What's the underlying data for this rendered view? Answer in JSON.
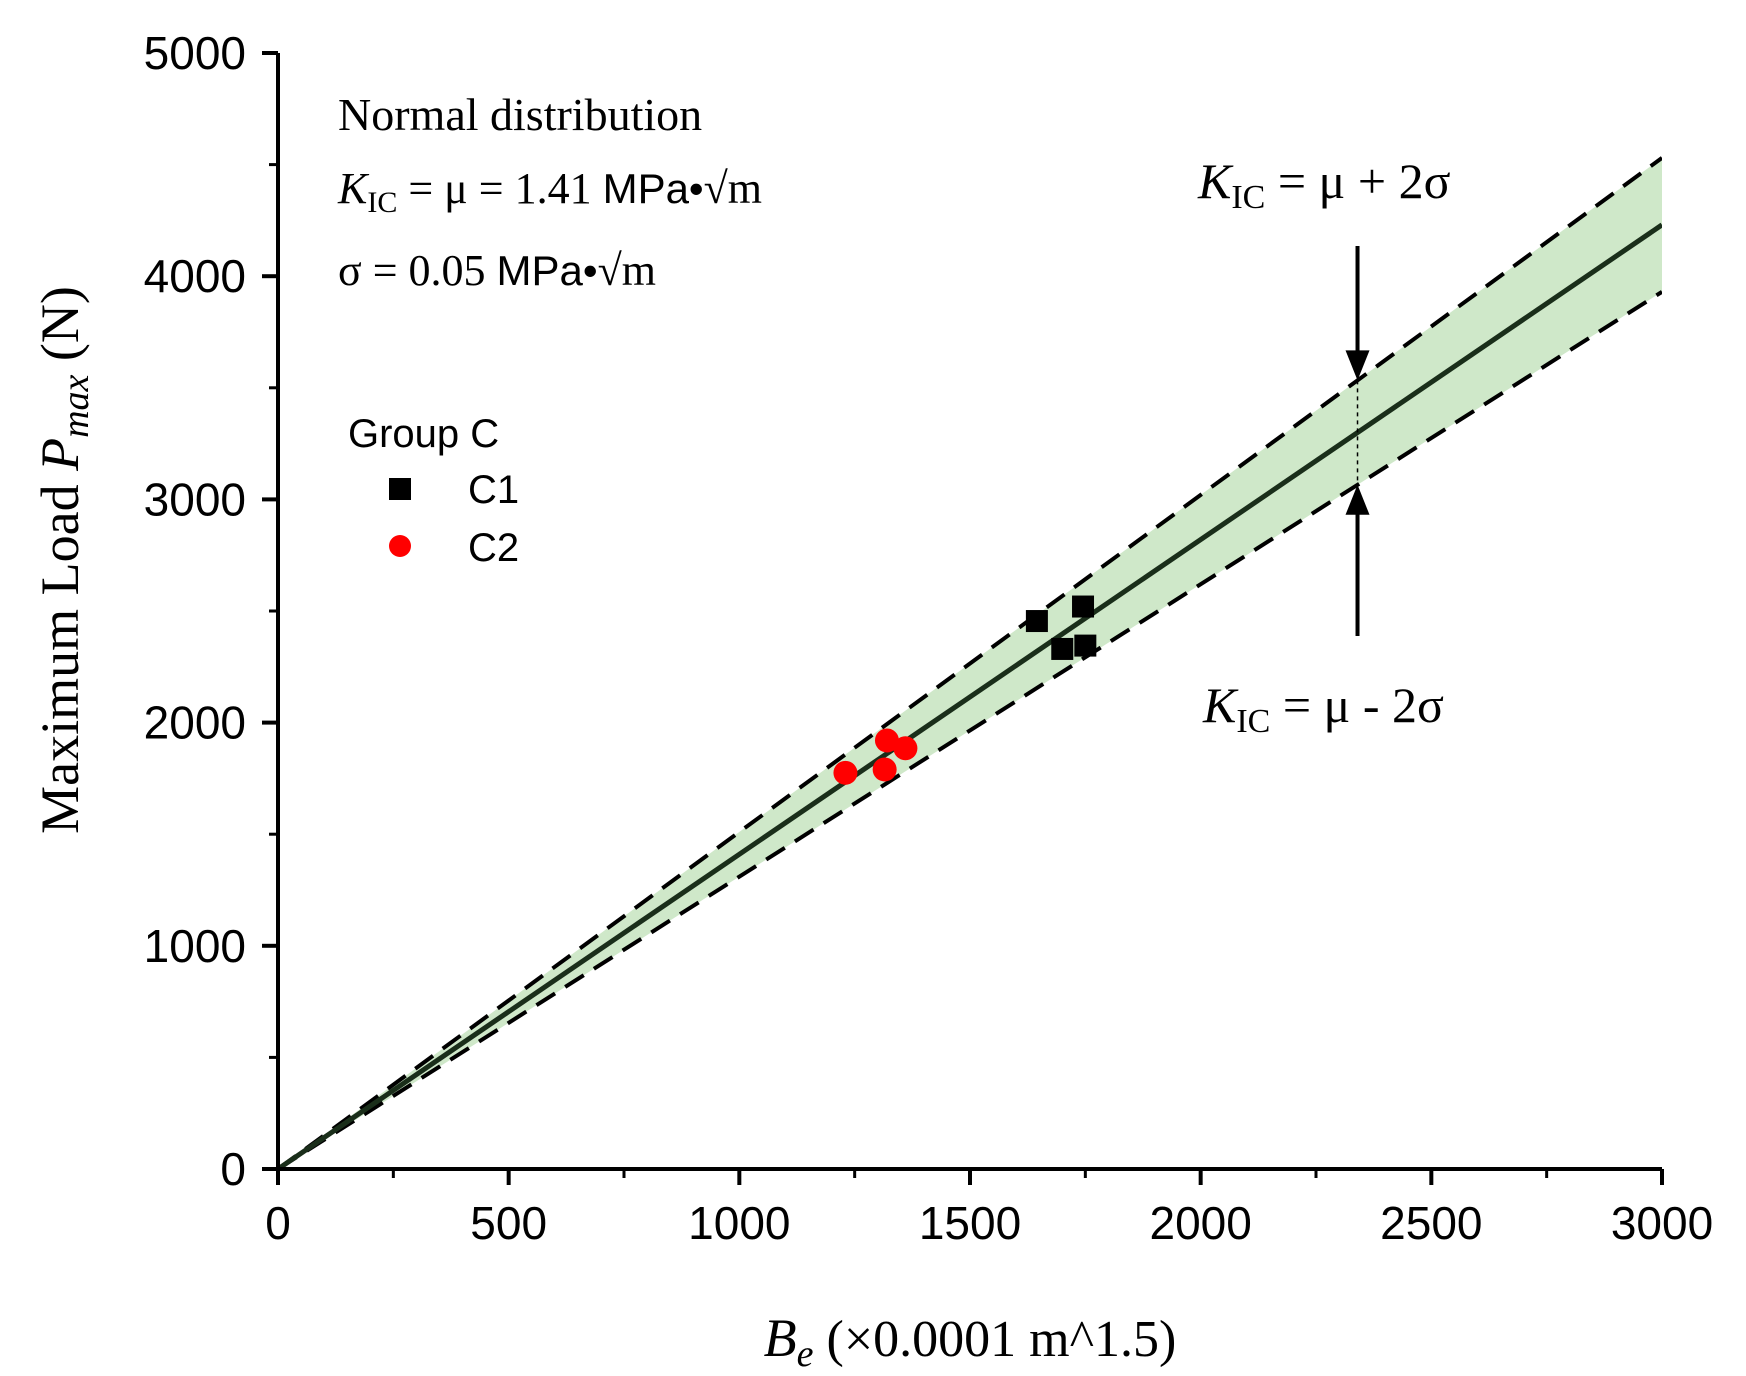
{
  "chart_data": {
    "type": "scatter",
    "xlabel": {
      "main": "B",
      "sub": "e",
      "unit": " (×0.0001 m^1.5)"
    },
    "ylabel": {
      "main": "Maximum Load ",
      "var": "P",
      "sub": "max",
      "unit": " (N)"
    },
    "xlim": [
      0,
      3000
    ],
    "ylim": [
      0,
      5000
    ],
    "xticks": [
      0,
      500,
      1000,
      1500,
      2000,
      2500,
      3000
    ],
    "yticks": [
      0,
      1000,
      2000,
      3000,
      4000,
      5000
    ],
    "series": [
      {
        "name": "C1",
        "marker": "square",
        "color": "#000000",
        "points": [
          [
            1645,
            2455
          ],
          [
            1700,
            2330
          ],
          [
            1745,
            2520
          ],
          [
            1750,
            2345
          ]
        ]
      },
      {
        "name": "C2",
        "marker": "circle",
        "color": "#ff0000",
        "points": [
          [
            1230,
            1775
          ],
          [
            1315,
            1790
          ],
          [
            1320,
            1920
          ],
          [
            1360,
            1885
          ]
        ]
      }
    ],
    "lines": {
      "mean_slope": 1.41,
      "upper_slope": 1.51,
      "lower_slope": 1.31,
      "band_color": "#cfe8c9"
    },
    "legend": {
      "title": "Group C",
      "position": "upper-left"
    },
    "annotations": {
      "header": "Normal distribution",
      "mu_k": "K",
      "mu_sub": "IC",
      "mu_rest": " = μ =  1.41 ",
      "mu_unit": "MPa•",
      "mu_root": "√m",
      "sigma_rest": "σ = 0.05 ",
      "sigma_unit": "MPa•",
      "sigma_root": "√m",
      "upper_k": "K",
      "upper_sub": "IC",
      "upper_rest": " = μ + 2σ",
      "lower_k": "K",
      "lower_sub": "IC",
      "lower_rest": " = μ - 2σ",
      "arrow_x": 2340
    }
  }
}
